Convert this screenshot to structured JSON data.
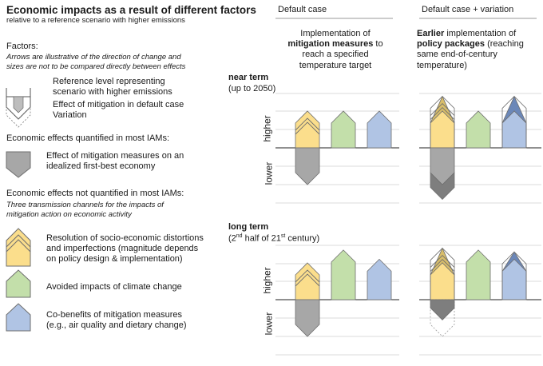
{
  "header": {
    "title": "Economic impacts as a result of different factors",
    "subtitle": "relative to a reference scenario with higher emissions"
  },
  "legend": {
    "factors_heading": "Factors:",
    "factors_note": [
      "Arrows are illustrative of the direction of change and",
      "sizes are not to be compared directly between effects"
    ],
    "reference_label": [
      "Reference level representing",
      "scenario with higher emissions"
    ],
    "mitigation_label": "Effect of mitigation in default case",
    "variation_label": "Variation",
    "quantified_heading": "Economic effects quantified in most IAMs:",
    "firstbest_label": [
      "Effect of mitigation measures on an",
      "idealized first-best economy"
    ],
    "not_quantified_heading": "Economic effects not quantified in most IAMs:",
    "channels_note": [
      "Three transmission channels for the impacts of",
      "mitigation action on economic activity"
    ],
    "distortions_label": [
      "Resolution of socio-economic distortions",
      "and imperfections (magnitude depends",
      "on policy design & implementation)"
    ],
    "climate_label": "Avoided impacts of climate change",
    "cobenefits_label": [
      "Co-benefits of mitigation measures",
      "(e.g., air quality and dietary change)"
    ]
  },
  "columns": {
    "default_header": "Default case",
    "variation_header": "Default case + variation",
    "default_desc": {
      "pre": "Implementation of",
      "bold": "mitigation measures",
      "post": "to reach a specified temperature target"
    },
    "variation_desc": {
      "bold": "Earlier",
      "mid": "implementation of",
      "bold2": "policy packages",
      "post": "(reaching same end-of-century temperature)"
    }
  },
  "terms": {
    "near_bold": "near term",
    "near_sub": "(up to 2050)",
    "long_bold": "long term",
    "long_sub_pre": "(2",
    "long_sub_sup": "nd",
    "long_sub_mid": " half of 21",
    "long_sub_sup2": "st",
    "long_sub_post": " century)",
    "higher": "higher",
    "lower": "lower"
  },
  "colors": {
    "yellow": "#fbde8c",
    "yellow_dark": "#d8bd6a",
    "green": "#c3dfaa",
    "green_dark": "#8fb478",
    "blue": "#b0c4e4",
    "blue_dark": "#6b87b8",
    "grey": "#a7a7a7",
    "grey_dark": "#7e7e7e",
    "stroke": "#6e6e6e"
  },
  "chart_data": [
    {
      "type": "diagram-bars",
      "panel": "near term",
      "scale": "qualitative (relative, not comparable between effects)",
      "default_case": {
        "distortions": 1.0,
        "climate_avoided": 1.0,
        "cobenefits": 1.0,
        "firstbest": -1.0
      },
      "variation": {
        "distortions": 1.4,
        "climate_avoided": 1.0,
        "cobenefits": 1.4,
        "firstbest": -1.4
      }
    },
    {
      "type": "diagram-bars",
      "panel": "long term",
      "scale": "qualitative (relative, not comparable between effects)",
      "default_case": {
        "distortions": 1.0,
        "climate_avoided": 1.35,
        "cobenefits": 1.1,
        "firstbest": -1.0
      },
      "variation": {
        "distortions": 1.4,
        "climate_avoided": 1.35,
        "cobenefits": 1.3,
        "firstbest": -0.55
      }
    }
  ]
}
